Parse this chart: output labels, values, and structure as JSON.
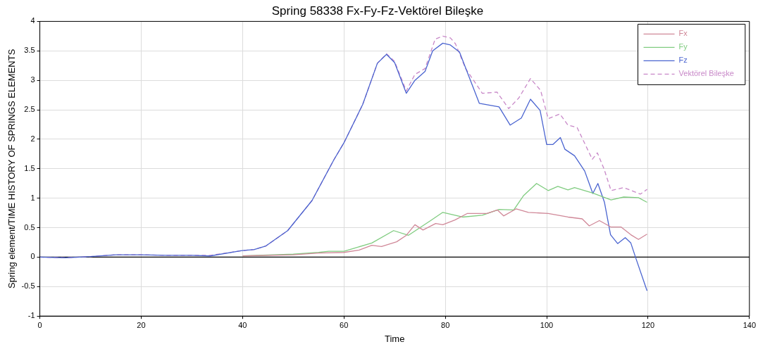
{
  "chart_data": {
    "type": "line",
    "title": "Spring 58338 Fx-Fy-Fz-Vektörel Bileşke",
    "xlabel": "Time",
    "ylabel": "Spring element/TIME HISTORY OF SPRINGS ELEMENTS",
    "xlim": [
      0,
      140
    ],
    "xticks": [
      0,
      20,
      40,
      60,
      80,
      100,
      120,
      140
    ],
    "ylim": [
      -1,
      4
    ],
    "yticks": [
      -1,
      -0.5,
      0,
      0.5,
      1,
      1.5,
      2,
      2.5,
      3,
      3.5,
      4
    ],
    "grid": true,
    "legend": "top right",
    "marker": "none",
    "ref_lines": [
      {
        "axis": "y",
        "value": 0,
        "color": "#000000"
      }
    ],
    "series": [
      {
        "name": "Fx",
        "color": "#d08898",
        "x": [
          40,
          50,
          55,
          60,
          63,
          65.5,
          67.4,
          70.4,
          72.3,
          74,
          75.6,
          78.1,
          79.5,
          81.9,
          84.3,
          88.2,
          90.3,
          91.5,
          94,
          96.4,
          100.3,
          104.2,
          107,
          108.4,
          110.4,
          112.7,
          114.7,
          116.6,
          118.1,
          119.8
        ],
        "values": [
          0.02,
          0.04,
          0.07,
          0.08,
          0.12,
          0.2,
          0.18,
          0.26,
          0.37,
          0.55,
          0.46,
          0.57,
          0.55,
          0.63,
          0.74,
          0.74,
          0.8,
          0.7,
          0.82,
          0.76,
          0.74,
          0.68,
          0.65,
          0.53,
          0.62,
          0.51,
          0.51,
          0.38,
          0.3,
          0.39
        ]
      },
      {
        "name": "Fy",
        "color": "#80cc80",
        "x": [
          40,
          50,
          55,
          57,
          60,
          62,
          65.5,
          69.8,
          72.7,
          77.1,
          79.5,
          83.4,
          87.3,
          90.6,
          93.5,
          95.4,
          98,
          100.3,
          102.2,
          104.2,
          105.5,
          109,
          112.7,
          115.2,
          118.1,
          119.8
        ],
        "values": [
          0.02,
          0.05,
          0.08,
          0.1,
          0.1,
          0.15,
          0.24,
          0.45,
          0.37,
          0.62,
          0.76,
          0.68,
          0.71,
          0.81,
          0.8,
          1.04,
          1.25,
          1.13,
          1.2,
          1.14,
          1.18,
          1.09,
          0.97,
          1.02,
          1.01,
          0.93
        ]
      },
      {
        "name": "Fz",
        "color": "#4a64d0",
        "x": [
          0,
          5,
          10,
          15,
          20,
          25,
          30,
          33.6,
          39.9,
          42.3,
          44.6,
          48.9,
          53.7,
          58,
          60,
          63.7,
          66.6,
          68.4,
          70,
          72.3,
          74,
          76,
          77.5,
          79.5,
          81,
          82.8,
          84.5,
          86.7,
          90.6,
          92.8,
          95,
          96.8,
          98.7,
          100,
          101.2,
          102.7,
          103.6,
          105.5,
          107.5,
          109.1,
          110.1,
          111.4,
          112.6,
          114,
          115.5,
          116.6,
          117.6,
          119.8
        ],
        "values": [
          0,
          -0.01,
          0.01,
          0.04,
          0.04,
          0.03,
          0.03,
          0.02,
          0.11,
          0.13,
          0.19,
          0.45,
          0.96,
          1.65,
          1.94,
          2.59,
          3.29,
          3.44,
          3.3,
          2.78,
          3.0,
          3.15,
          3.5,
          3.63,
          3.6,
          3.48,
          3.1,
          2.61,
          2.55,
          2.24,
          2.36,
          2.68,
          2.49,
          1.91,
          1.91,
          2.03,
          1.83,
          1.72,
          1.46,
          1.08,
          1.25,
          0.93,
          0.38,
          0.23,
          0.33,
          0.24,
          -0.02,
          -0.57
        ]
      },
      {
        "name": "Vektörel Bileşke",
        "color": "#c888c8",
        "line_style": "dashed",
        "x": [
          0,
          5,
          10,
          15,
          20,
          25,
          30,
          33.6,
          39.9,
          42.3,
          44.6,
          48.9,
          53.7,
          58,
          60,
          63.7,
          66.6,
          68.4,
          70,
          72.3,
          74,
          76,
          77,
          78,
          79.5,
          81,
          82,
          84,
          87.3,
          90.2,
          92.5,
          94.5,
          96.8,
          98.8,
          100.3,
          102.6,
          104.2,
          106,
          109,
          110,
          111.3,
          112.7,
          115.2,
          118.5,
          119.8
        ],
        "values": [
          0,
          -0.01,
          0.01,
          0.04,
          0.04,
          0.03,
          0.03,
          0.03,
          0.11,
          0.13,
          0.19,
          0.45,
          0.96,
          1.65,
          1.94,
          2.59,
          3.29,
          3.45,
          3.32,
          2.82,
          3.1,
          3.2,
          3.45,
          3.7,
          3.75,
          3.72,
          3.62,
          3.2,
          2.78,
          2.8,
          2.52,
          2.7,
          3.03,
          2.83,
          2.35,
          2.43,
          2.24,
          2.2,
          1.66,
          1.77,
          1.5,
          1.13,
          1.18,
          1.07,
          1.15
        ]
      }
    ]
  }
}
